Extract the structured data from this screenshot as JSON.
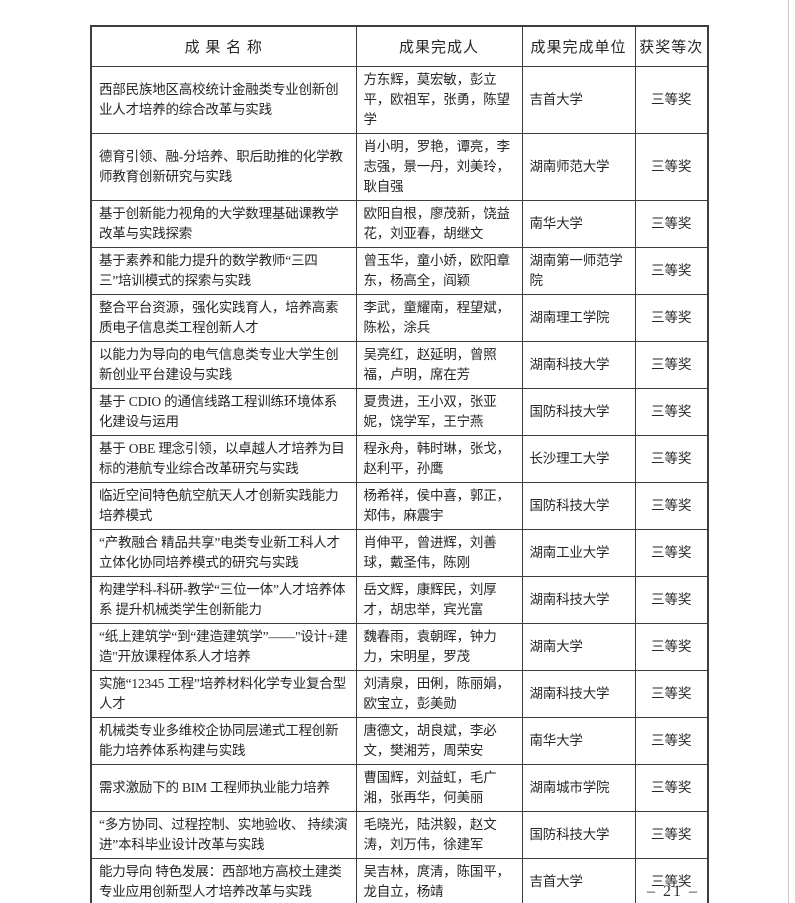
{
  "page": {
    "footer_page_number": "– 21 –"
  },
  "table": {
    "columns": [
      "成 果 名 称",
      "成果完成人",
      "成果完成单位",
      "获奖等次"
    ],
    "rows": [
      {
        "name": "西部民族地区高校统计金融类专业创新创业人才培养的综合改革与实践",
        "people": "方东辉，莫宏敏，彭立平，欧祖军，张勇，陈望学",
        "unit": "吉首大学",
        "award": "三等奖"
      },
      {
        "name": "德育引领、融-分培养、职后助推的化学教师教育创新研究与实践",
        "people": "肖小明，罗艳，谭亮，李志强，景一丹，刘美玲，耿自强",
        "unit": "湖南师范大学",
        "award": "三等奖"
      },
      {
        "name": "基于创新能力视角的大学数理基础课教学改革与实践探索",
        "people": "欧阳自根，廖茂新，饶益花，刘亚春，胡继文",
        "unit": "南华大学",
        "award": "三等奖"
      },
      {
        "name": "基于素养和能力提升的数学教师“三四三”培训模式的探索与实践",
        "people": "曾玉华，童小娇，欧阳章东，杨高全，阎颖",
        "unit": "湖南第一师范学院",
        "award": "三等奖"
      },
      {
        "name": "整合平台资源，强化实践育人，培养高素质电子信息类工程创新人才",
        "people": "李武，童耀南，程望斌，陈松，涂兵",
        "unit": "湖南理工学院",
        "award": "三等奖"
      },
      {
        "name": "以能力为导向的电气信息类专业大学生创新创业平台建设与实践",
        "people": "吴亮红，赵延明，曾照福，卢明，席在芳",
        "unit": "湖南科技大学",
        "award": "三等奖"
      },
      {
        "name": "基于 CDIO 的通信线路工程训练环境体系化建设与运用",
        "people": "夏贵进，王小双，张亚妮，饶学军，王宁燕",
        "unit": "国防科技大学",
        "award": "三等奖"
      },
      {
        "name": "基于 OBE 理念引领，以卓越人才培养为目标的港航专业综合改革研究与实践",
        "people": "程永舟，韩时琳，张戈，赵利平，孙鹰",
        "unit": "长沙理工大学",
        "award": "三等奖"
      },
      {
        "name": "临近空间特色航空航天人才创新实践能力培养模式",
        "people": "杨希祥，侯中喜，郭正，郑伟，麻震宇",
        "unit": "国防科技大学",
        "award": "三等奖"
      },
      {
        "name": "“产教融合 精品共享”电类专业新工科人才立体化协同培养模式的研究与实践",
        "people": "肖伸平，曾进辉，刘善球，戴圣伟，陈刚",
        "unit": "湖南工业大学",
        "award": "三等奖"
      },
      {
        "name": "构建学科-科研-教学“三位一体”人才培养体系 提升机械类学生创新能力",
        "people": "岳文辉，康辉民，刘厚才，胡忠举，宾光富",
        "unit": "湖南科技大学",
        "award": "三等奖"
      },
      {
        "name": "“纸上建筑学“到“建造建筑学”——\"设计+建造\"开放课程体系人才培养",
        "people": "魏春雨，袁朝晖，钟力力，宋明星，罗茂",
        "unit": "湖南大学",
        "award": "三等奖"
      },
      {
        "name": "实施“12345 工程”培养材料化学专业复合型人才",
        "people": "刘清泉，田俐，陈丽娟，欧宝立，彭美勋",
        "unit": "湖南科技大学",
        "award": "三等奖"
      },
      {
        "name": "机械类专业多维校企协同层递式工程创新能力培养体系构建与实践",
        "people": "唐德文，胡良斌，李必文，樊湘芳，周荣安",
        "unit": "南华大学",
        "award": "三等奖"
      },
      {
        "name": "需求激励下的 BIM 工程师执业能力培养",
        "people": "曹国辉，刘益虹，毛广湘，张再华，何美丽",
        "unit": "湖南城市学院",
        "award": "三等奖"
      },
      {
        "name": "“多方协同、过程控制、实地验收、 持续演进”本科毕业设计改革与实践",
        "people": "毛晓光，陆洪毅，赵文涛，刘万伟，徐建军",
        "unit": "国防科技大学",
        "award": "三等奖"
      },
      {
        "name": "能力导向 特色发展：西部地方高校土建类专业应用创新型人才培养改革与实践",
        "people": "吴吉林，庹清，陈国平，龙自立，杨靖",
        "unit": "吉首大学",
        "award": "三等奖"
      }
    ]
  }
}
